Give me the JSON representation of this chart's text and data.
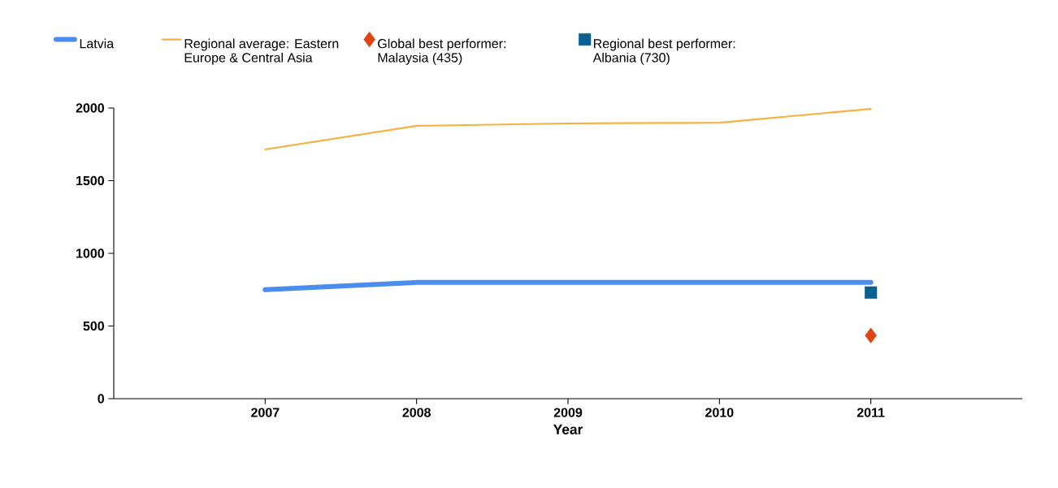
{
  "chart_data": {
    "type": "line",
    "xlabel": "Year",
    "x": [
      2007,
      2008,
      2009,
      2010,
      2011
    ],
    "xlim": [
      2006,
      2012
    ],
    "xticks": [
      2007,
      2008,
      2009,
      2010,
      2011
    ],
    "ylim": [
      0,
      2000
    ],
    "yticks": [
      0,
      500,
      1000,
      1500,
      2000
    ],
    "grid": false,
    "legend": "top",
    "series": [
      {
        "name": "Latvia",
        "color": "#4a8cf0",
        "values": [
          750,
          800,
          800,
          800,
          800
        ]
      },
      {
        "name": "Regional average: Eastern Europe & Central Asia",
        "color": "#f8b040",
        "values": [
          1715,
          1877,
          1894,
          1899,
          1994
        ]
      },
      {
        "name": "Global best performer: Malaysia (435)",
        "type": "scatter",
        "marker": "diamond",
        "color": "#dd4411",
        "x": [
          2011
        ],
        "values": [
          435
        ]
      },
      {
        "name": "Regional best performer: Albania (730)",
        "type": "scatter",
        "marker": "square",
        "color": "#0a6090",
        "x": [
          2011
        ],
        "values": [
          730
        ]
      }
    ]
  }
}
